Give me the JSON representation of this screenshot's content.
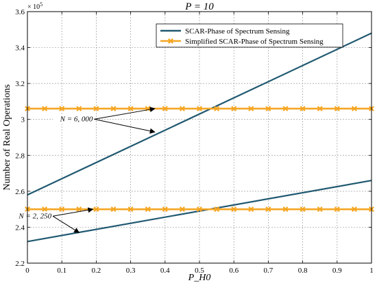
{
  "chart_data": {
    "type": "line",
    "title": "P = 10",
    "xlabel": "P_H0",
    "ylabel": "Number of Real Operations",
    "y_exponent_label": "× 10",
    "y_exponent_power": "5",
    "xlim": [
      0,
      1
    ],
    "ylim": [
      2.2,
      3.6
    ],
    "x_ticks": [
      0,
      0.1,
      0.2,
      0.3,
      0.4,
      0.5,
      0.6,
      0.7,
      0.8,
      0.9,
      1
    ],
    "x_tick_labels": [
      "0",
      "0.1",
      "0.2",
      "0.3",
      "0.4",
      "0.5",
      "0.6",
      "0.7",
      "0.8",
      "0.9",
      "1"
    ],
    "y_ticks": [
      2.2,
      2.4,
      2.6,
      2.8,
      3.0,
      3.2,
      3.4,
      3.6
    ],
    "y_tick_labels": [
      "2.2",
      "2.4",
      "2.6",
      "2.8",
      "3",
      "3.2",
      "3.4",
      "3.6"
    ],
    "grid": true,
    "legend_position": "top-right",
    "series": [
      {
        "name": "SCAR-Phase of Spectrum Sensing",
        "color": "#1f5870",
        "marker": "none",
        "groups": [
          {
            "x": [
              0,
              1
            ],
            "y": [
              2.58,
              3.48
            ]
          },
          {
            "x": [
              0,
              1
            ],
            "y": [
              2.32,
              2.66
            ]
          }
        ]
      },
      {
        "name": "Simplified SCAR-Phase of Spectrum Sensing",
        "color": "#f5a623",
        "marker": "x",
        "groups": [
          {
            "x": [
              0,
              0.05,
              0.1,
              0.15,
              0.2,
              0.25,
              0.3,
              0.35,
              0.4,
              0.45,
              0.5,
              0.55,
              0.6,
              0.65,
              0.7,
              0.75,
              0.8,
              0.85,
              0.9,
              0.95,
              1
            ],
            "y": [
              3.06,
              3.06,
              3.06,
              3.06,
              3.06,
              3.06,
              3.06,
              3.06,
              3.06,
              3.06,
              3.06,
              3.06,
              3.06,
              3.06,
              3.06,
              3.06,
              3.06,
              3.06,
              3.06,
              3.06,
              3.06
            ]
          },
          {
            "x": [
              0,
              0.05,
              0.1,
              0.15,
              0.2,
              0.25,
              0.3,
              0.35,
              0.4,
              0.45,
              0.5,
              0.55,
              0.6,
              0.65,
              0.7,
              0.75,
              0.8,
              0.85,
              0.9,
              0.95,
              1
            ],
            "y": [
              2.5,
              2.5,
              2.5,
              2.5,
              2.5,
              2.5,
              2.5,
              2.5,
              2.5,
              2.5,
              2.5,
              2.5,
              2.5,
              2.5,
              2.5,
              2.5,
              2.5,
              2.5,
              2.5,
              2.5,
              2.5
            ]
          }
        ]
      }
    ],
    "annotations": [
      {
        "text": "N = 6, 000",
        "anchor": [
          0.19,
          2.99
        ],
        "targets": [
          [
            0.37,
            3.06
          ],
          [
            0.37,
            2.93
          ]
        ]
      },
      {
        "text": "N = 2, 250",
        "anchor": [
          0.07,
          2.45
        ],
        "targets": [
          [
            0.19,
            2.5
          ],
          [
            0.15,
            2.37
          ]
        ]
      }
    ]
  }
}
